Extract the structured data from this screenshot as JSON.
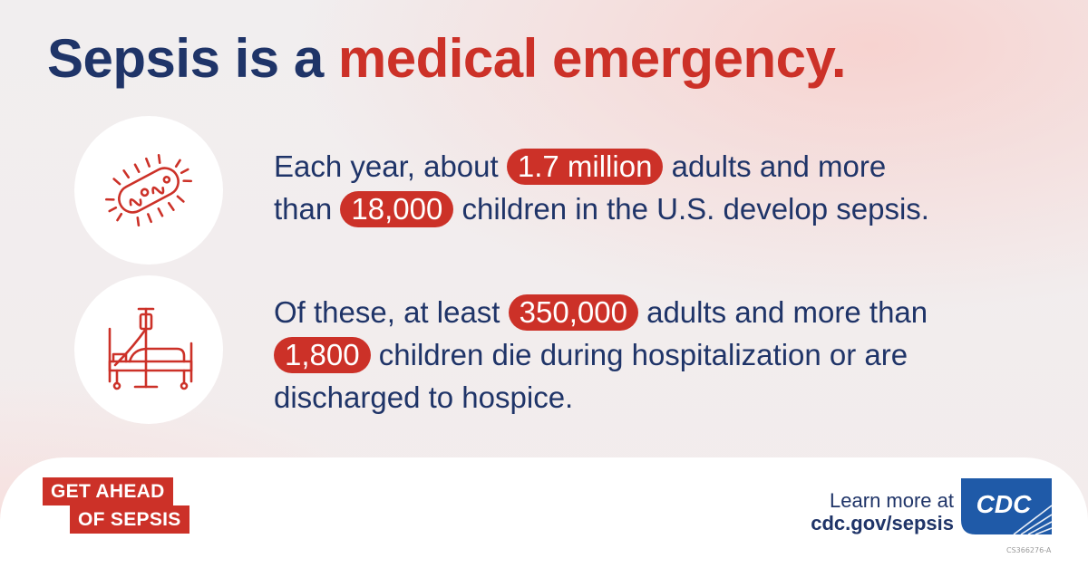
{
  "headline": {
    "part1": "Sepsis is a ",
    "part2": "medical emergency."
  },
  "facts": [
    {
      "icon": "bacteria-icon",
      "line1": {
        "pre": "Each year, about ",
        "highlight": "1.7 million",
        "post": " adults and more"
      },
      "line2": {
        "pre": "than ",
        "highlight": "18,000",
        "post": " children in the U.S. develop sepsis."
      }
    },
    {
      "icon": "hospital-bed-icon",
      "line1": {
        "pre": "Of these, at least ",
        "highlight": "350,000",
        "post": " adults and more than"
      },
      "line2": {
        "pre": "",
        "highlight": "1,800",
        "post": " children die during hospitalization or are"
      },
      "line3": "discharged to hospice."
    }
  ],
  "campaign": {
    "line1": "GET AHEAD",
    "line2": "OF SEPSIS"
  },
  "learn_more": {
    "label": "Learn more at",
    "url": "cdc.gov/sepsis"
  },
  "logo_text": "CDC",
  "code": "CS366276-A",
  "colors": {
    "navy": "#1f3468",
    "red": "#cc3128",
    "white": "#ffffff"
  }
}
